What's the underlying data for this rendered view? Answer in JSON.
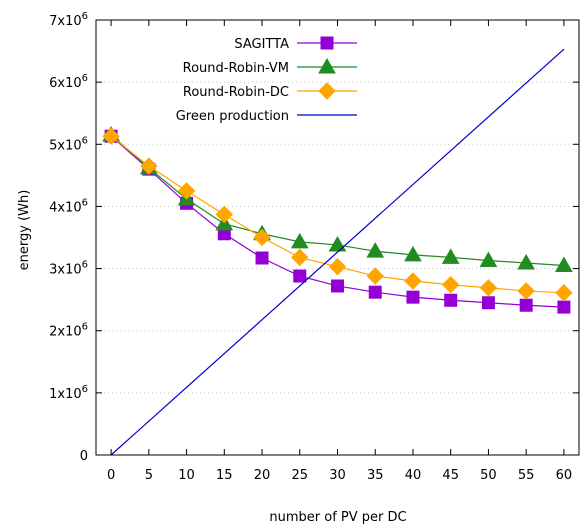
{
  "chart_data": {
    "type": "line",
    "xlabel": "number of PV per DC",
    "ylabel": "energy (Wh)",
    "x": [
      0,
      5,
      10,
      15,
      20,
      25,
      30,
      35,
      40,
      45,
      50,
      55,
      60
    ],
    "xlim": [
      -2,
      62
    ],
    "ylim": [
      0,
      7000000
    ],
    "xticks": [
      0,
      5,
      10,
      15,
      20,
      25,
      30,
      35,
      40,
      45,
      50,
      55,
      60
    ],
    "yticks": [
      {
        "value": 0,
        "label": "0"
      },
      {
        "value": 1000000,
        "base": "1x10",
        "exp": "6"
      },
      {
        "value": 2000000,
        "base": "2x10",
        "exp": "6"
      },
      {
        "value": 3000000,
        "base": "3x10",
        "exp": "6"
      },
      {
        "value": 4000000,
        "base": "4x10",
        "exp": "6"
      },
      {
        "value": 5000000,
        "base": "5x10",
        "exp": "6"
      },
      {
        "value": 6000000,
        "base": "6x10",
        "exp": "6"
      },
      {
        "value": 7000000,
        "base": "7x10",
        "exp": "6"
      }
    ],
    "grid": true,
    "legend_position": "top-right",
    "series": [
      {
        "name": "SAGITTA",
        "color": "#9400d3",
        "marker": "square",
        "values": [
          5130000,
          4600000,
          4050000,
          3560000,
          3170000,
          2880000,
          2720000,
          2620000,
          2540000,
          2490000,
          2450000,
          2410000,
          2380000
        ]
      },
      {
        "name": "Round-Robin-VM",
        "color": "#228b22",
        "marker": "triangle",
        "values": [
          5150000,
          4620000,
          4120000,
          3720000,
          3560000,
          3430000,
          3380000,
          3280000,
          3220000,
          3180000,
          3130000,
          3090000,
          3050000
        ]
      },
      {
        "name": "Round-Robin-DC",
        "color": "#ffa500",
        "marker": "diamond",
        "values": [
          5130000,
          4650000,
          4250000,
          3870000,
          3500000,
          3180000,
          3030000,
          2880000,
          2800000,
          2740000,
          2690000,
          2640000,
          2610000
        ]
      },
      {
        "name": "Green production",
        "color": "#0000cd",
        "marker": "none",
        "points": [
          [
            0,
            0
          ],
          [
            60,
            6530000
          ]
        ]
      }
    ]
  }
}
